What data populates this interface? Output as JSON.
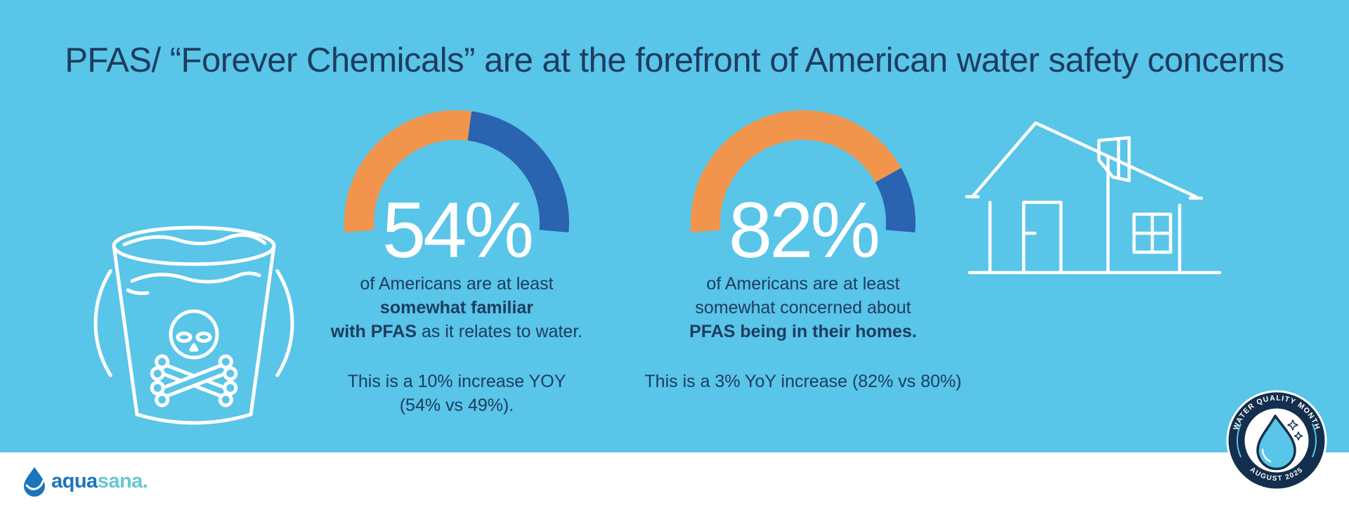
{
  "title": "PFAS/ “Forever Chemicals” are at the forefront of American water safety concerns",
  "colors": {
    "background": "#59C5E8",
    "navy_text": "#1D3C5F",
    "gauge_filled": "#F2954C",
    "gauge_remainder": "#2A63B0",
    "white": "#FFFFFF",
    "badge_navy": "#132F4D",
    "logo_blue": "#1B75BC",
    "logo_teal": "#65C8D2"
  },
  "chart_data": [
    {
      "type": "gauge",
      "value": 54,
      "max": 100,
      "display": "54%",
      "segments": [
        {
          "name": "at least somewhat familiar",
          "value": 54,
          "color": "#F2954C"
        },
        {
          "name": "remainder",
          "value": 46,
          "color": "#2A63B0"
        }
      ],
      "caption_lines": [
        [
          {
            "text": "of Americans are at least",
            "bold": false
          }
        ],
        [
          {
            "text": "somewhat familiar",
            "bold": true
          }
        ],
        [
          {
            "text": "with PFAS",
            "bold": true
          },
          {
            "text": " as it relates to water.",
            "bold": false
          }
        ]
      ],
      "note_lines": [
        "This is a 10% increase YOY",
        "(54% vs 49%)."
      ]
    },
    {
      "type": "gauge",
      "value": 82,
      "max": 100,
      "display": "82%",
      "segments": [
        {
          "name": "at least somewhat concerned",
          "value": 82,
          "color": "#F2954C"
        },
        {
          "name": "remainder",
          "value": 18,
          "color": "#2A63B0"
        }
      ],
      "caption_lines": [
        [
          {
            "text": "of Americans are at least",
            "bold": false
          }
        ],
        [
          {
            "text": "somewhat concerned about",
            "bold": false
          }
        ],
        [
          {
            "text": "PFAS being in their homes.",
            "bold": true
          }
        ]
      ],
      "note_lines": [
        "This is a 3% YoY increase (82% vs 80%)"
      ]
    }
  ],
  "badge": {
    "top_text": "WATER QUALITY MONTH",
    "bottom_text": "AUGUST 2025"
  },
  "logo": {
    "brand_first": "aqua",
    "brand_second": "sana",
    "brand_suffix": "."
  }
}
